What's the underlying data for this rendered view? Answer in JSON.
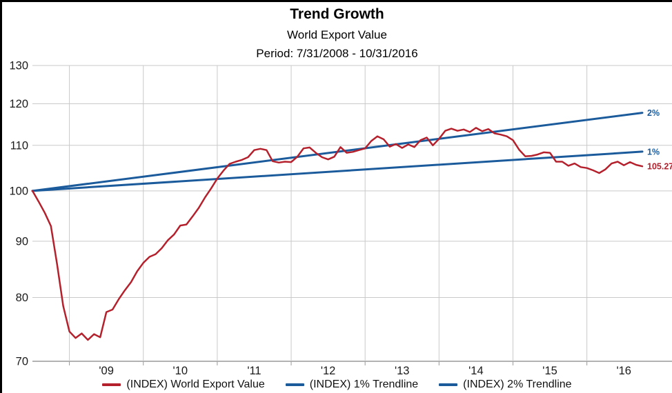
{
  "header": {
    "title": "Trend Growth",
    "subtitle": "World Export Value",
    "period": "Period: 7/31/2008 - 10/31/2016"
  },
  "colors": {
    "series_red": "#B4202C",
    "trend_blue": "#1B5B9C",
    "gridline": "#C9C9C9",
    "axis_line": "#999999",
    "text": "#1A1A1A"
  },
  "legend": {
    "items": [
      {
        "label": "(INDEX) World Export Value",
        "color": "#B4202C"
      },
      {
        "label": "(INDEX) 1% Trendline",
        "color": "#1B5B9C"
      },
      {
        "label": "(INDEX) 2% Trendline",
        "color": "#1B5B9C"
      }
    ]
  },
  "chart_data": {
    "type": "line",
    "title": "Trend Growth",
    "subtitle": "World Export Value",
    "period_label": "Period: 7/31/2008 - 10/31/2016",
    "y_scale": "log",
    "ylim": [
      70,
      130
    ],
    "y_ticks": [
      70,
      80,
      90,
      100,
      110,
      120,
      130
    ],
    "x_start": "2008-07",
    "x_end": "2016-10",
    "x_frequency": "monthly",
    "x_year_labels": [
      "'09",
      "'10",
      "'11",
      "'12",
      "'13",
      "'14",
      "'15",
      "'16"
    ],
    "grid": true,
    "start_value": 100,
    "end_label": "105.27",
    "series": [
      {
        "name": "(INDEX) World Export Value",
        "color": "#B4202C",
        "values": [
          100.0,
          97.8,
          95.5,
          92.9,
          85.8,
          78.6,
          74.5,
          73.5,
          74.2,
          73.2,
          74.1,
          73.6,
          77.6,
          78.0,
          79.7,
          81.2,
          82.6,
          84.5,
          86.0,
          87.1,
          87.6,
          88.7,
          90.2,
          91.3,
          93.0,
          93.2,
          94.8,
          96.5,
          98.6,
          100.5,
          102.6,
          104.3,
          105.8,
          106.3,
          106.7,
          107.3,
          108.9,
          109.2,
          108.9,
          106.4,
          106.1,
          106.3,
          106.2,
          107.4,
          109.3,
          109.5,
          108.3,
          107.3,
          106.8,
          107.4,
          109.6,
          108.3,
          108.5,
          108.9,
          109.3,
          111.0,
          112.1,
          111.4,
          109.7,
          110.3,
          109.4,
          110.2,
          109.6,
          111.2,
          111.8,
          110.0,
          111.5,
          113.4,
          113.9,
          113.4,
          113.7,
          113.1,
          114.1,
          113.3,
          113.8,
          112.8,
          112.5,
          112.1,
          111.2,
          109.0,
          107.5,
          107.6,
          107.9,
          108.4,
          108.3,
          106.3,
          106.3,
          105.4,
          105.9,
          105.1,
          104.9,
          104.4,
          103.8,
          104.6,
          105.9,
          106.3,
          105.5,
          106.2,
          105.6,
          105.27
        ]
      }
    ],
    "trendlines": [
      {
        "name": "(INDEX) 1% Trendline",
        "label": "1%",
        "annual_rate_pct": 1,
        "color": "#1B5B9C"
      },
      {
        "name": "(INDEX) 2% Trendline",
        "label": "2%",
        "annual_rate_pct": 2,
        "color": "#1B5B9C"
      }
    ],
    "legend_position": "bottom"
  }
}
